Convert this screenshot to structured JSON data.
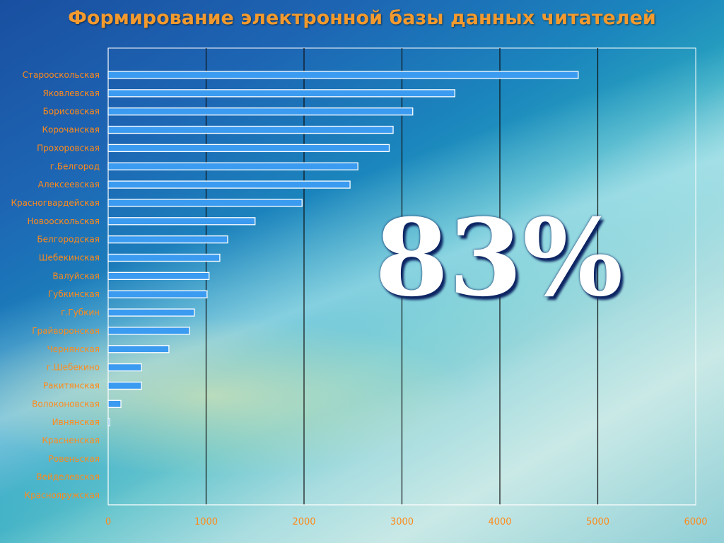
{
  "slide": {
    "title": "Формирование электронной базы данных читателей",
    "big_percent": "83%"
  },
  "colors": {
    "bar_fill": "#3a9bf0",
    "bar_stroke": "#ffffff",
    "label": "#ff8a1a",
    "title": "#f29a2e"
  },
  "chart_data": {
    "type": "bar",
    "orientation": "horizontal",
    "title": "",
    "xlabel": "",
    "ylabel": "",
    "xlim": [
      0,
      6000
    ],
    "ticks": [
      0,
      1000,
      2000,
      3000,
      4000,
      5000,
      6000
    ],
    "grid": true,
    "categories": [
      "Старооскольская",
      "Яковлевская",
      "Борисовская",
      "Корочанская",
      "Прохоровская",
      "г.Белгород",
      "Алексеевская",
      "Красногвардейская",
      "Новооскольская",
      "Белгородская",
      "Шебекинская",
      "Валуйская",
      "Губкинская",
      "г.Губкин",
      "Грайворонская",
      "Чернянская",
      "г.Шебекино",
      "Ракитянская",
      "Волоконовская",
      "Ивнянская",
      "Красненская",
      "Ровеньская",
      "Вейделевская",
      "Краснояружская"
    ],
    "values": [
      4800,
      3540,
      3110,
      2910,
      2870,
      2550,
      2470,
      1980,
      1500,
      1220,
      1140,
      1030,
      1010,
      880,
      830,
      620,
      340,
      340,
      130,
      15,
      0,
      0,
      0,
      0
    ]
  }
}
